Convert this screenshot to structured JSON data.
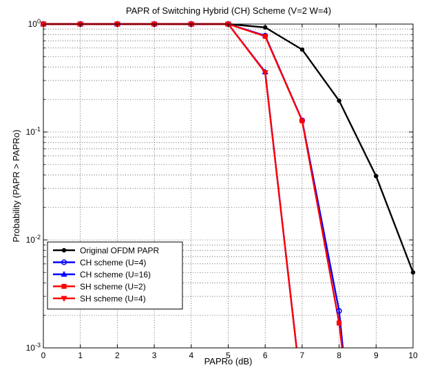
{
  "chart_data": {
    "type": "line",
    "title": "PAPR of Switching Hybrid (CH) Scheme (V=2 W=4)",
    "xlabel": "PAPRo (dB)",
    "ylabel": "Probability (PAPR > PAPRo)",
    "xlim": [
      0,
      10
    ],
    "ylim": [
      0.001,
      1
    ],
    "yscale": "log",
    "grid": true,
    "legend_position": "bottom-left",
    "x_ticks": [
      "0",
      "1",
      "2",
      "3",
      "4",
      "5",
      "6",
      "7",
      "8",
      "9",
      "10"
    ],
    "y_ticks": [
      {
        "value": 1,
        "base": "10",
        "exp": "0"
      },
      {
        "value": 0.1,
        "base": "10",
        "exp": "-1"
      },
      {
        "value": 0.01,
        "base": "10",
        "exp": "-2"
      },
      {
        "value": 0.001,
        "base": "10",
        "exp": "-3"
      }
    ],
    "series": [
      {
        "name": "Original OFDM PAPR",
        "color": "#000000",
        "marker": "dot",
        "x": [
          0,
          1,
          2,
          3,
          4,
          5,
          6,
          7,
          8,
          9,
          10
        ],
        "y": [
          1,
          1,
          1,
          1,
          1,
          1,
          0.93,
          0.58,
          0.195,
          0.039,
          0.005
        ]
      },
      {
        "name": "CH scheme (U=4)",
        "color": "#0000ff",
        "marker": "circle",
        "x": [
          0,
          1,
          2,
          3,
          4,
          5,
          6,
          7,
          8,
          8.1
        ],
        "y": [
          1,
          1,
          1,
          1,
          1,
          1,
          0.78,
          0.128,
          0.0022,
          0.001
        ],
        "marker_count": 9
      },
      {
        "name": "CH scheme (U=16)",
        "color": "#0000ff",
        "marker": "triangle-up",
        "x": [
          0,
          1,
          2,
          3,
          4,
          5,
          6,
          6.85
        ],
        "y": [
          1,
          1,
          1,
          1,
          1,
          1,
          0.36,
          0.001
        ],
        "marker_count": 7
      },
      {
        "name": "SH scheme (U=2)",
        "color": "#ff0000",
        "marker": "square",
        "x": [
          0,
          1,
          2,
          3,
          4,
          5,
          6,
          7,
          8,
          8.08
        ],
        "y": [
          1,
          1,
          1,
          1,
          1,
          1,
          0.77,
          0.127,
          0.0017,
          0.001
        ],
        "marker_count": 9
      },
      {
        "name": "SH scheme (U=4)",
        "color": "#ff0000",
        "marker": "triangle-down",
        "x": [
          0,
          1,
          2,
          3,
          4,
          5,
          6,
          6.85
        ],
        "y": [
          1,
          1,
          1,
          1,
          1,
          1,
          0.355,
          0.001
        ],
        "marker_count": 7
      }
    ]
  }
}
